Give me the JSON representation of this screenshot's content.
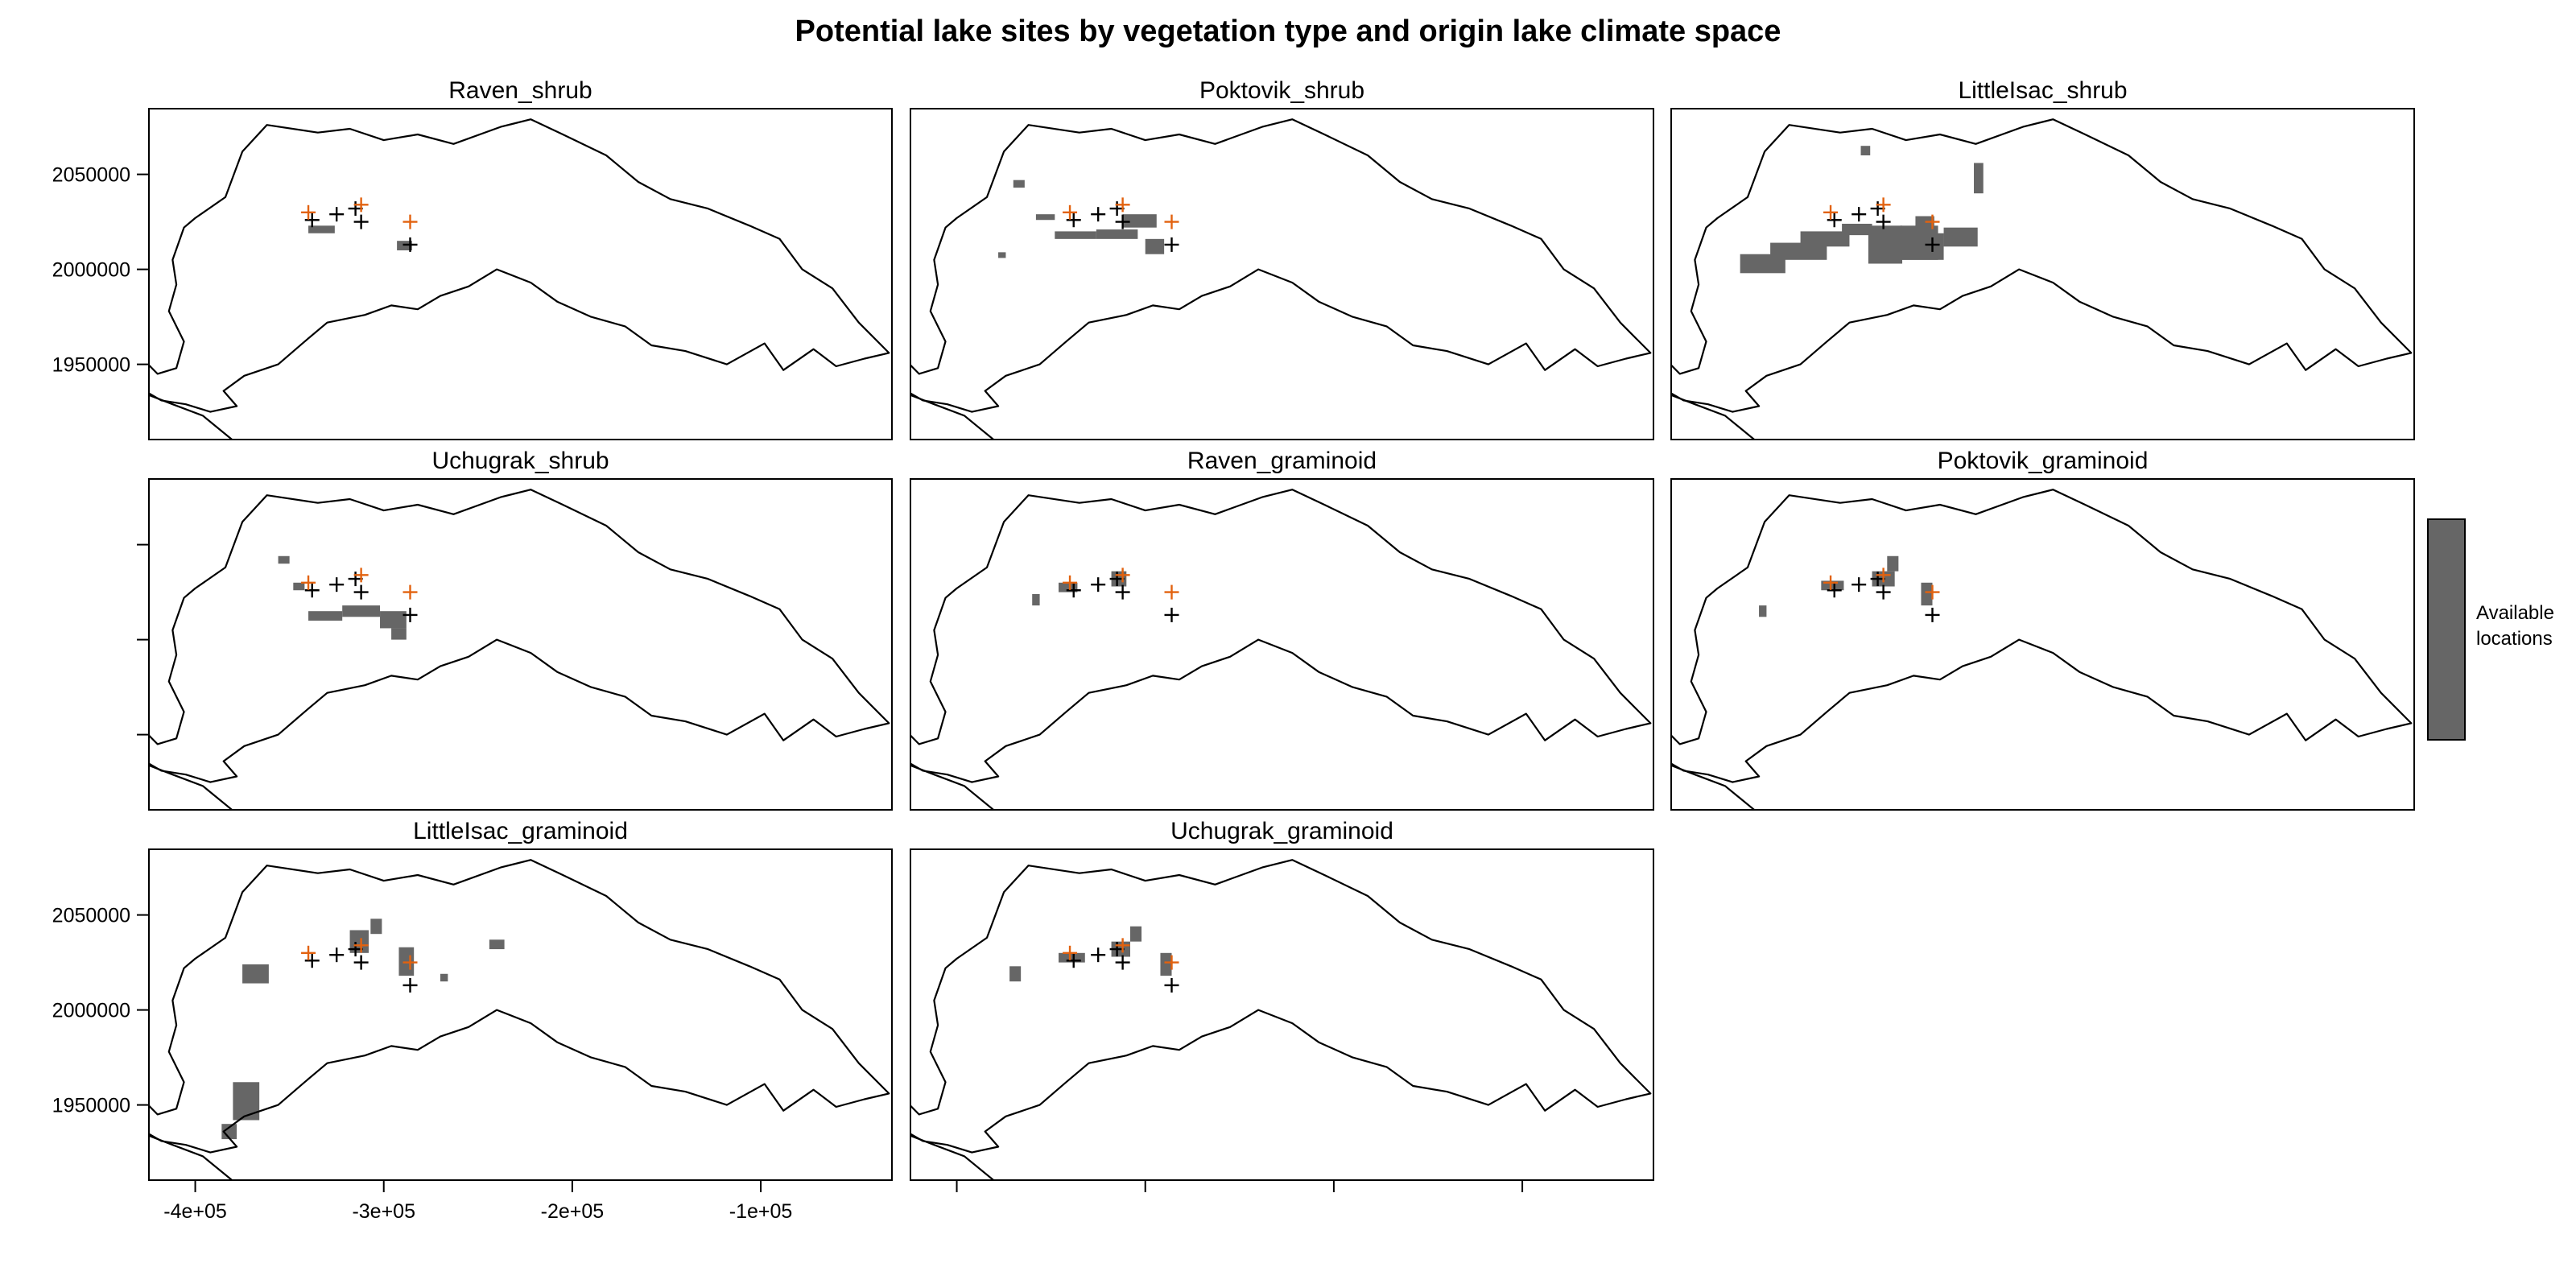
{
  "title": "Potential lake sites by vegetation type and origin lake climate space",
  "legend": {
    "line1": "Available",
    "line2": "locations",
    "color": "#666666"
  },
  "colors": {
    "habitat": "#666666",
    "origin_marker": "#E2620F",
    "site_marker": "#000000",
    "boundary": "#000000"
  },
  "axes": {
    "x_ticks": [
      -400000,
      -300000,
      -200000,
      -100000
    ],
    "x_tick_labels": [
      "-4e+05",
      "-3e+05",
      "-2e+05",
      "-1e+05"
    ],
    "y_ticks": [
      1950000,
      2000000,
      2050000
    ],
    "y_tick_labels": [
      "1950000",
      "2000000",
      "2050000"
    ]
  },
  "map_extent": {
    "xlim": [
      -425000,
      -30000
    ],
    "ylim": [
      1910000,
      2085000
    ]
  },
  "region_boundary": [
    [
      -425000,
      1950000
    ],
    [
      -420000,
      1945000
    ],
    [
      -410000,
      1948000
    ],
    [
      -406000,
      1962000
    ],
    [
      -414000,
      1978000
    ],
    [
      -410000,
      1992000
    ],
    [
      -412000,
      2005000
    ],
    [
      -406000,
      2022000
    ],
    [
      -400000,
      2027000
    ],
    [
      -384000,
      2038000
    ],
    [
      -375000,
      2062000
    ],
    [
      -362000,
      2076000
    ],
    [
      -335000,
      2072000
    ],
    [
      -318000,
      2074000
    ],
    [
      -300000,
      2068000
    ],
    [
      -282000,
      2071000
    ],
    [
      -263000,
      2066000
    ],
    [
      -238000,
      2075000
    ],
    [
      -222000,
      2079000
    ],
    [
      -205000,
      2071000
    ],
    [
      -182000,
      2060000
    ],
    [
      -165000,
      2046000
    ],
    [
      -148000,
      2037000
    ],
    [
      -128000,
      2032000
    ],
    [
      -106000,
      2023000
    ],
    [
      -90000,
      2016000
    ],
    [
      -78000,
      2000000
    ],
    [
      -62000,
      1990000
    ],
    [
      -48000,
      1972000
    ],
    [
      -32000,
      1956000
    ],
    [
      -45000,
      1953000
    ],
    [
      -60000,
      1949000
    ],
    [
      -72000,
      1958000
    ],
    [
      -88000,
      1947000
    ],
    [
      -98000,
      1961000
    ],
    [
      -118000,
      1950000
    ],
    [
      -140000,
      1957000
    ],
    [
      -158000,
      1960000
    ],
    [
      -172000,
      1970000
    ],
    [
      -190000,
      1975000
    ],
    [
      -208000,
      1983000
    ],
    [
      -222000,
      1993000
    ],
    [
      -240000,
      2000000
    ],
    [
      -255000,
      1991000
    ],
    [
      -270000,
      1986000
    ],
    [
      -282000,
      1979000
    ],
    [
      -296000,
      1981000
    ],
    [
      -310000,
      1976000
    ],
    [
      -330000,
      1972000
    ],
    [
      -342000,
      1962000
    ],
    [
      -356000,
      1950000
    ],
    [
      -374000,
      1944000
    ],
    [
      -385000,
      1936000
    ],
    [
      -378000,
      1928000
    ],
    [
      -392000,
      1925000
    ],
    [
      -405000,
      1929000
    ],
    [
      -418000,
      1931000
    ],
    [
      -425000,
      1935000
    ]
  ],
  "coast": [
    [
      -425000,
      1934000
    ],
    [
      -412000,
      1929000
    ],
    [
      -396000,
      1923000
    ],
    [
      -380000,
      1910000
    ]
  ],
  "origin_lakes": [
    [
      -340000,
      2030000
    ],
    [
      -312000,
      2034000
    ],
    [
      -286000,
      2025000
    ]
  ],
  "candidate_sites": [
    [
      -338000,
      2026000
    ],
    [
      -325000,
      2029000
    ],
    [
      -315000,
      2032000
    ],
    [
      -312000,
      2025000
    ],
    [
      -286000,
      2013000
    ]
  ],
  "panels": [
    {
      "title": "Raven_shrub",
      "show_y": true,
      "show_x": false,
      "habitat": [
        [
          -340000,
          2019000,
          14000,
          4000
        ],
        [
          -293000,
          2010000,
          8000,
          5000
        ]
      ]
    },
    {
      "title": "Poktovik_shrub",
      "show_y": false,
      "show_x": false,
      "habitat": [
        [
          -348000,
          2016000,
          22000,
          4000
        ],
        [
          -326000,
          2016000,
          22000,
          5000
        ],
        [
          -312000,
          2022000,
          18000,
          7000
        ],
        [
          -300000,
          2008000,
          10000,
          8000
        ],
        [
          -370000,
          2043000,
          6000,
          4000
        ],
        [
          -358000,
          2026000,
          10000,
          3000
        ],
        [
          -378000,
          2006000,
          4000,
          3000
        ]
      ]
    },
    {
      "title": "LittleIsac_shrub",
      "show_y": false,
      "show_x": false,
      "habitat": [
        [
          -388000,
          1998000,
          24000,
          10000
        ],
        [
          -372000,
          2005000,
          30000,
          9000
        ],
        [
          -356000,
          2012000,
          26000,
          8000
        ],
        [
          -334000,
          2018000,
          16000,
          6000
        ],
        [
          -320000,
          2003000,
          18000,
          20000
        ],
        [
          -303000,
          2005000,
          20000,
          18000
        ],
        [
          -310000,
          2005000,
          30000,
          14000
        ],
        [
          -280000,
          2012000,
          18000,
          10000
        ],
        [
          -295000,
          2022000,
          10000,
          6000
        ],
        [
          -264000,
          2040000,
          5000,
          16000
        ],
        [
          -324000,
          2060000,
          5000,
          5000
        ]
      ]
    },
    {
      "title": "Uchugrak_shrub",
      "show_y": false,
      "show_x": false,
      "habitat": [
        [
          -340000,
          2010000,
          18000,
          5000
        ],
        [
          -322000,
          2012000,
          20000,
          6000
        ],
        [
          -302000,
          2006000,
          14000,
          9000
        ],
        [
          -296000,
          2000000,
          8000,
          6000
        ],
        [
          -356000,
          2040000,
          6000,
          4000
        ],
        [
          -348000,
          2026000,
          6000,
          4000
        ]
      ]
    },
    {
      "title": "Raven_graminoid",
      "show_y": false,
      "show_x": false,
      "habitat": [
        [
          -346000,
          2025000,
          10000,
          5000
        ],
        [
          -318000,
          2028000,
          8000,
          8000
        ],
        [
          -360000,
          2018000,
          4000,
          6000
        ]
      ]
    },
    {
      "title": "Poktovik_graminoid",
      "show_y": false,
      "show_x": false,
      "habitat": [
        [
          -345000,
          2026000,
          12000,
          5000
        ],
        [
          -318000,
          2028000,
          12000,
          8000
        ],
        [
          -310000,
          2036000,
          6000,
          8000
        ],
        [
          -292000,
          2018000,
          6000,
          12000
        ],
        [
          -378000,
          2012000,
          4000,
          6000
        ]
      ]
    },
    {
      "title": "LittleIsac_graminoid",
      "show_y": true,
      "show_x": true,
      "habitat": [
        [
          -375000,
          2014000,
          14000,
          10000
        ],
        [
          -318000,
          2030000,
          10000,
          12000
        ],
        [
          -307000,
          2040000,
          6000,
          8000
        ],
        [
          -292000,
          2018000,
          8000,
          15000
        ],
        [
          -244000,
          2032000,
          8000,
          5000
        ],
        [
          -380000,
          1942000,
          14000,
          20000
        ],
        [
          -386000,
          1932000,
          8000,
          8000
        ],
        [
          -270000,
          2015000,
          4000,
          4000
        ]
      ]
    },
    {
      "title": "Uchugrak_graminoid",
      "show_y": false,
      "show_x": false,
      "habitat": [
        [
          -346000,
          2025000,
          14000,
          5000
        ],
        [
          -318000,
          2028000,
          10000,
          8000
        ],
        [
          -308000,
          2036000,
          6000,
          8000
        ],
        [
          -292000,
          2018000,
          6000,
          12000
        ],
        [
          -372000,
          2015000,
          6000,
          8000
        ]
      ]
    }
  ]
}
